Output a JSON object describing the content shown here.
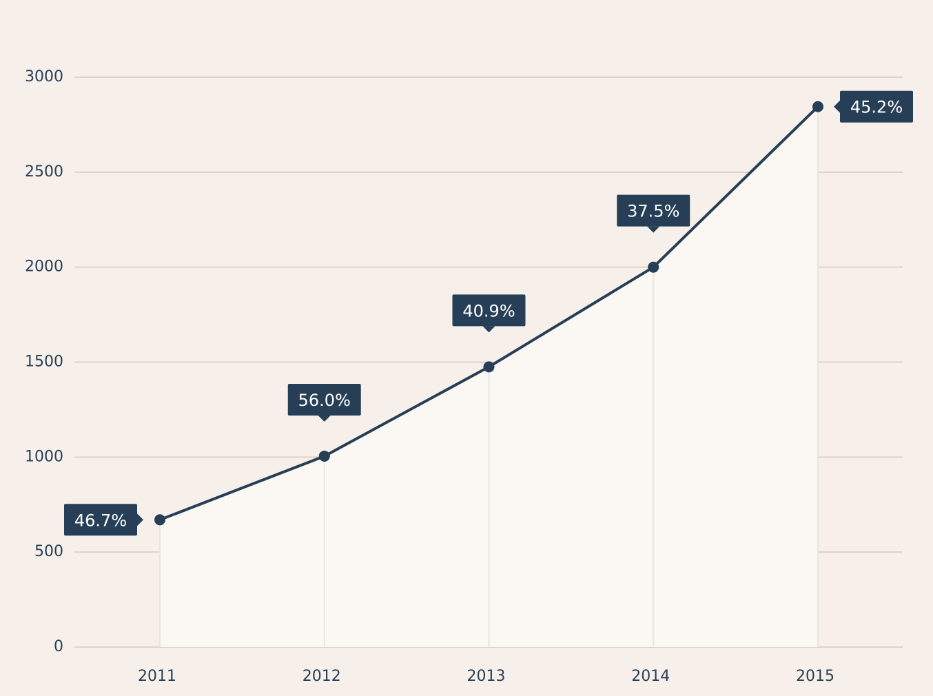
{
  "chart_data": {
    "type": "line",
    "title": "",
    "xlabel": "",
    "ylabel": "",
    "categories": [
      "2011",
      "2012",
      "2013",
      "2014",
      "2015"
    ],
    "series": [
      {
        "values": [
          670,
          1005,
          1475,
          2000,
          2845
        ],
        "labels": [
          "46.7%",
          "56.0%",
          "40.9%",
          "37.5%",
          "45.2%"
        ]
      }
    ],
    "ylim": [
      0,
      3000
    ],
    "yticks": [
      "0",
      "500",
      "1000",
      "1500",
      "2000",
      "2500",
      "3000"
    ],
    "grid": true,
    "area_under_line": true,
    "colors": {
      "background": "#f7f0ea",
      "line": "#263f56",
      "area": "#fbf8f4",
      "callout": "#263f56",
      "gridline": "#ddd3c8",
      "text": "#273f55"
    }
  }
}
